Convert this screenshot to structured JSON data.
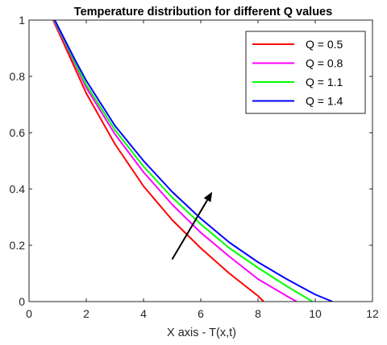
{
  "chart_data": {
    "type": "line",
    "title": "Temperature distribution for different Q values",
    "xlabel": "X axis - T(x,t)",
    "ylabel": "",
    "xlim": [
      0,
      12
    ],
    "ylim": [
      0,
      1
    ],
    "xticks": [
      "0",
      "2",
      "4",
      "6",
      "8",
      "10",
      "12"
    ],
    "yticks": [
      "0",
      "0.2",
      "0.4",
      "0.6",
      "0.8",
      "1"
    ],
    "grid": false,
    "legend_position": "top-right",
    "series": [
      {
        "name": "Q = 0.5",
        "color": "#ff0000",
        "points": [
          [
            0.84,
            1.0
          ],
          [
            1.2,
            0.92
          ],
          [
            1.6,
            0.83
          ],
          [
            2.0,
            0.74
          ],
          [
            3.0,
            0.56
          ],
          [
            4.0,
            0.41
          ],
          [
            5.0,
            0.29
          ],
          [
            6.0,
            0.19
          ],
          [
            7.0,
            0.1
          ],
          [
            8.0,
            0.02
          ],
          [
            8.2,
            0.0
          ]
        ]
      },
      {
        "name": "Q = 0.8",
        "color": "#ff00ff",
        "points": [
          [
            0.86,
            1.0
          ],
          [
            1.2,
            0.93
          ],
          [
            1.6,
            0.845
          ],
          [
            2.0,
            0.76
          ],
          [
            3.0,
            0.595
          ],
          [
            4.0,
            0.46
          ],
          [
            5.0,
            0.345
          ],
          [
            6.0,
            0.245
          ],
          [
            7.0,
            0.16
          ],
          [
            8.0,
            0.08
          ],
          [
            9.0,
            0.02
          ],
          [
            9.35,
            0.0
          ]
        ]
      },
      {
        "name": "Q = 1.1",
        "color": "#00ff00",
        "points": [
          [
            0.88,
            1.0
          ],
          [
            1.2,
            0.935
          ],
          [
            1.6,
            0.85
          ],
          [
            2.0,
            0.77
          ],
          [
            3.0,
            0.61
          ],
          [
            4.0,
            0.48
          ],
          [
            5.0,
            0.37
          ],
          [
            6.0,
            0.275
          ],
          [
            7.0,
            0.19
          ],
          [
            8.0,
            0.12
          ],
          [
            9.0,
            0.055
          ],
          [
            9.9,
            0.0
          ]
        ]
      },
      {
        "name": "Q = 1.4",
        "color": "#0000ff",
        "points": [
          [
            0.9,
            1.0
          ],
          [
            1.2,
            0.94
          ],
          [
            1.6,
            0.86
          ],
          [
            2.0,
            0.785
          ],
          [
            3.0,
            0.625
          ],
          [
            4.0,
            0.5
          ],
          [
            5.0,
            0.39
          ],
          [
            6.0,
            0.295
          ],
          [
            7.0,
            0.21
          ],
          [
            8.0,
            0.14
          ],
          [
            9.0,
            0.08
          ],
          [
            10.0,
            0.025
          ],
          [
            10.6,
            0.0
          ]
        ]
      }
    ],
    "annotations": [
      {
        "type": "arrow",
        "from": [
          5.0,
          0.15
        ],
        "to": [
          6.4,
          0.39
        ],
        "color": "#000000"
      }
    ]
  }
}
